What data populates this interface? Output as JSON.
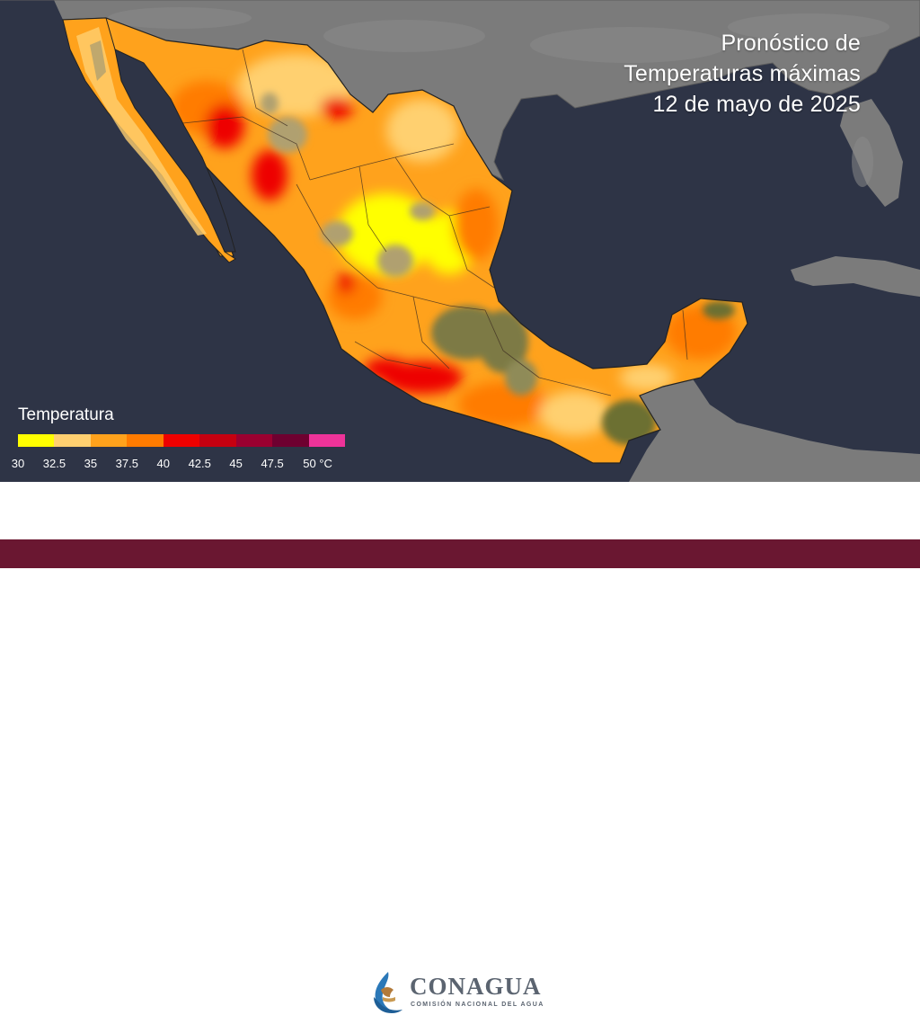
{
  "title": {
    "line1": "Pronóstico de",
    "line2": "Temperaturas máximas",
    "line3": "12 de mayo de 2025"
  },
  "legend": {
    "title": "Temperatura",
    "colors": [
      "#ffff00",
      "#ffd070",
      "#ffa21c",
      "#ff7b00",
      "#ee0000",
      "#c50010",
      "#9a0030",
      "#6e0030",
      "#ee3399"
    ],
    "ticks": [
      "30",
      "32.5",
      "35",
      "37.5",
      "40",
      "42.5",
      "45",
      "47.5",
      "50 °C"
    ]
  },
  "footer": {
    "logo_name": "CONAGUA",
    "logo_subtitle": "COMISIÓN NACIONAL DEL AGUA",
    "band_color": "#6a1731"
  },
  "map": {
    "ocean_color": "#2e3446",
    "land_color": "#777777"
  }
}
